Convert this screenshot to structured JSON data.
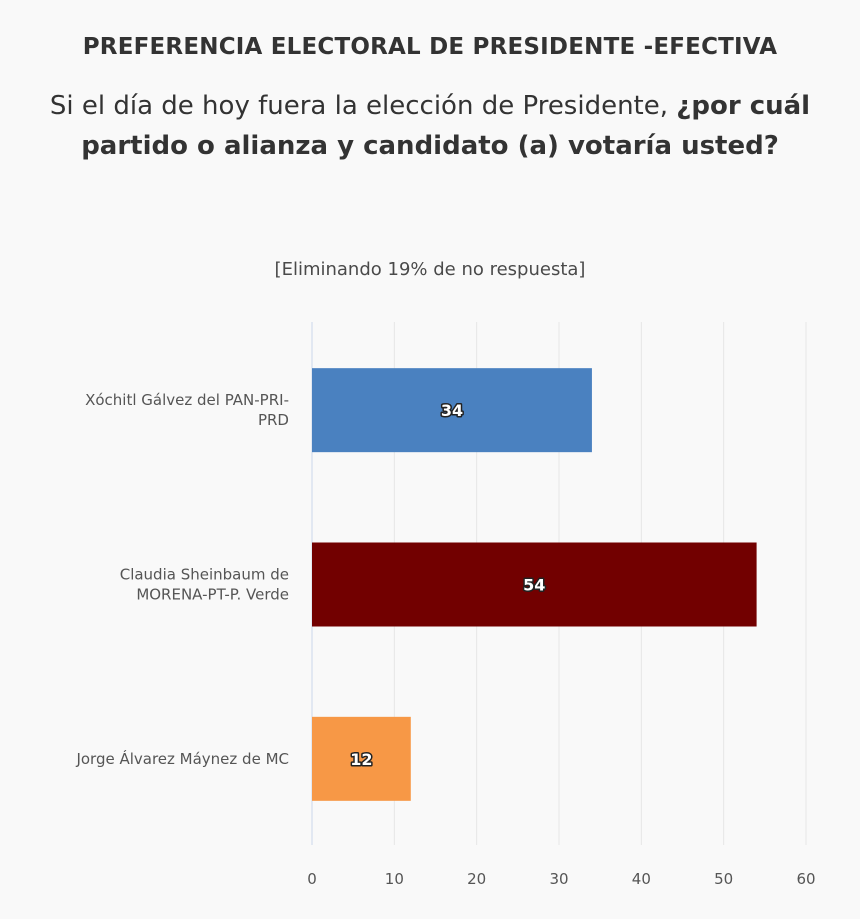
{
  "header": {
    "title": "PREFERENCIA ELECTORAL DE PRESIDENTE -EFECTIVA",
    "question_plain": "Si el día de hoy fuera la elección de Presidente, ",
    "question_bold": "¿por cuál partido o alianza y candidato (a) votaría usted?",
    "subtitle": "[Eliminando 19% de no respuesta]"
  },
  "chart_data": {
    "type": "bar",
    "orientation": "horizontal",
    "title": "PREFERENCIA ELECTORAL DE PRESIDENTE -EFECTIVA",
    "subtitle": "[Eliminando 19% de no respuesta]",
    "categories": [
      [
        "Xóchitl Gálvez del PAN-PRI-",
        "PRD"
      ],
      [
        "Claudia Sheinbaum de",
        "MORENA-PT-P. Verde"
      ],
      [
        "Jorge Álvarez Máynez de MC"
      ]
    ],
    "values": [
      34,
      54,
      12
    ],
    "colors": [
      "#4a81c0",
      "#720000",
      "#f79846"
    ],
    "xlabel": "",
    "ylabel": "",
    "xlim": [
      0,
      60
    ],
    "xticks": [
      0,
      10,
      20,
      30,
      40,
      50,
      60
    ],
    "grid": true,
    "legend": "none"
  }
}
